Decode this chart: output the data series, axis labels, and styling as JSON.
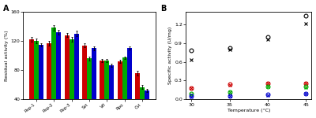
{
  "panel_a": {
    "categories": [
      "Rsp-1",
      "Rsp-2",
      "Rsp-3",
      "Sst",
      "Vfl",
      "Rpo",
      "Cvl"
    ],
    "red": [
      122,
      117,
      128,
      114,
      93,
      92,
      76
    ],
    "green": [
      120,
      138,
      122,
      96,
      93,
      97,
      57
    ],
    "blue": [
      115,
      132,
      130,
      110,
      87,
      110,
      52
    ],
    "red_err": [
      3,
      3,
      3,
      3,
      2,
      2,
      3
    ],
    "green_err": [
      3,
      4,
      3,
      3,
      2,
      2,
      3
    ],
    "blue_err": [
      2,
      3,
      4,
      3,
      2,
      2,
      2
    ],
    "ylabel": "Residual activity (%)",
    "ylim": [
      40,
      160
    ],
    "yticks": [
      40,
      80,
      120,
      160
    ],
    "label": "A"
  },
  "panel_b": {
    "temps": [
      30,
      35,
      40,
      45
    ],
    "black_circle": [
      0.78,
      0.82,
      0.99,
      1.33
    ],
    "black_cross": [
      0.63,
      0.8,
      0.96,
      1.21
    ],
    "red_circle": [
      0.18,
      0.24,
      0.26,
      0.26
    ],
    "red_cross": [
      0.18,
      0.23,
      0.25,
      0.26
    ],
    "green_circle": [
      0.09,
      0.12,
      0.21,
      0.2
    ],
    "green_cross": [
      0.08,
      0.12,
      0.2,
      0.19
    ],
    "blue_circle": [
      0.05,
      0.05,
      0.08,
      0.09
    ],
    "blue_cross": [
      0.04,
      0.05,
      0.07,
      0.09
    ],
    "ylabel": "Specific activity (U/mg)",
    "xlabel": "Temperature (°C)",
    "ylim": [
      0.0,
      1.4
    ],
    "yticks": [
      0.0,
      0.3,
      0.6,
      0.9,
      1.2
    ],
    "label": "B"
  },
  "bg_color": "#ffffff",
  "plot_bg": "#ffffff"
}
